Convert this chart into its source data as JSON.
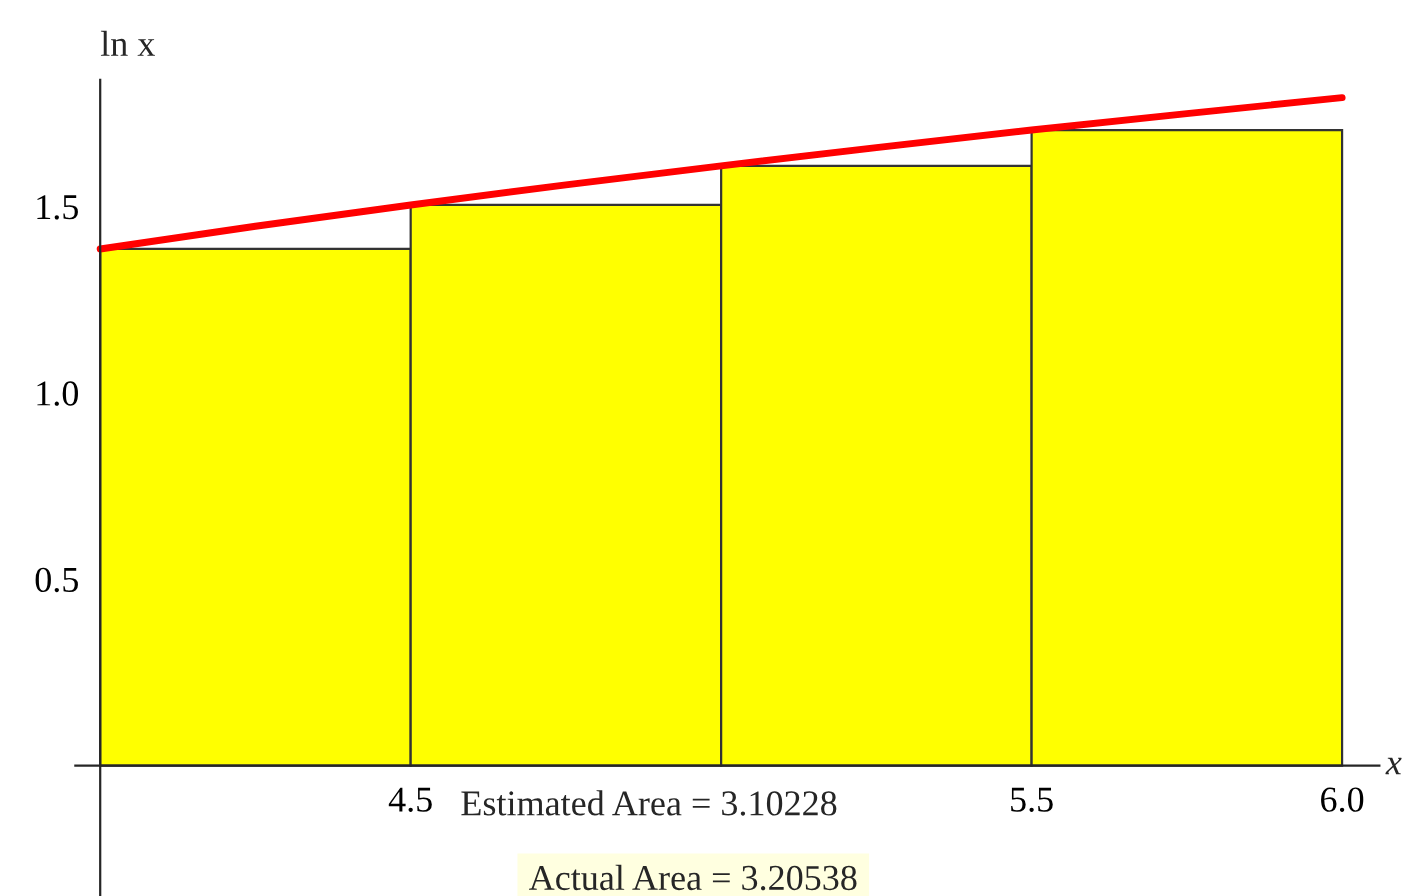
{
  "chart_data": {
    "type": "histogram",
    "xlabel": "x",
    "ylabel": "ln x",
    "bins": [
      4,
      4.5,
      5,
      5.5,
      6
    ],
    "values": [
      1.386,
      1.504,
      1.609,
      1.705
    ],
    "color": "#ffff00",
    "series": [
      {
        "type": "line",
        "color": "#ff0000",
        "x": [
          4,
          4.25,
          4.5,
          4.75,
          5,
          5.25,
          5.5,
          5.75,
          6
        ],
        "values": [
          1.386,
          1.447,
          1.504,
          1.558,
          1.609,
          1.658,
          1.705,
          1.749,
          1.792
        ]
      }
    ],
    "xlim": [
      3.96,
      6.06
    ],
    "ylim": [
      -0.35,
      1.84
    ],
    "xticks": [
      4.5,
      5.5,
      {
        "value": 6.0,
        "label": "6.0"
      }
    ],
    "yticks": [
      {
        "value": 0.5,
        "label": "0.5"
      },
      {
        "value": 1.0,
        "label": "1.0"
      },
      {
        "value": 1.5,
        "label": "1.5"
      }
    ],
    "annotations": [
      "Estimated Area = 3.10228",
      "Actual Area = 3.20538"
    ],
    "grid": false,
    "legend": false
  }
}
